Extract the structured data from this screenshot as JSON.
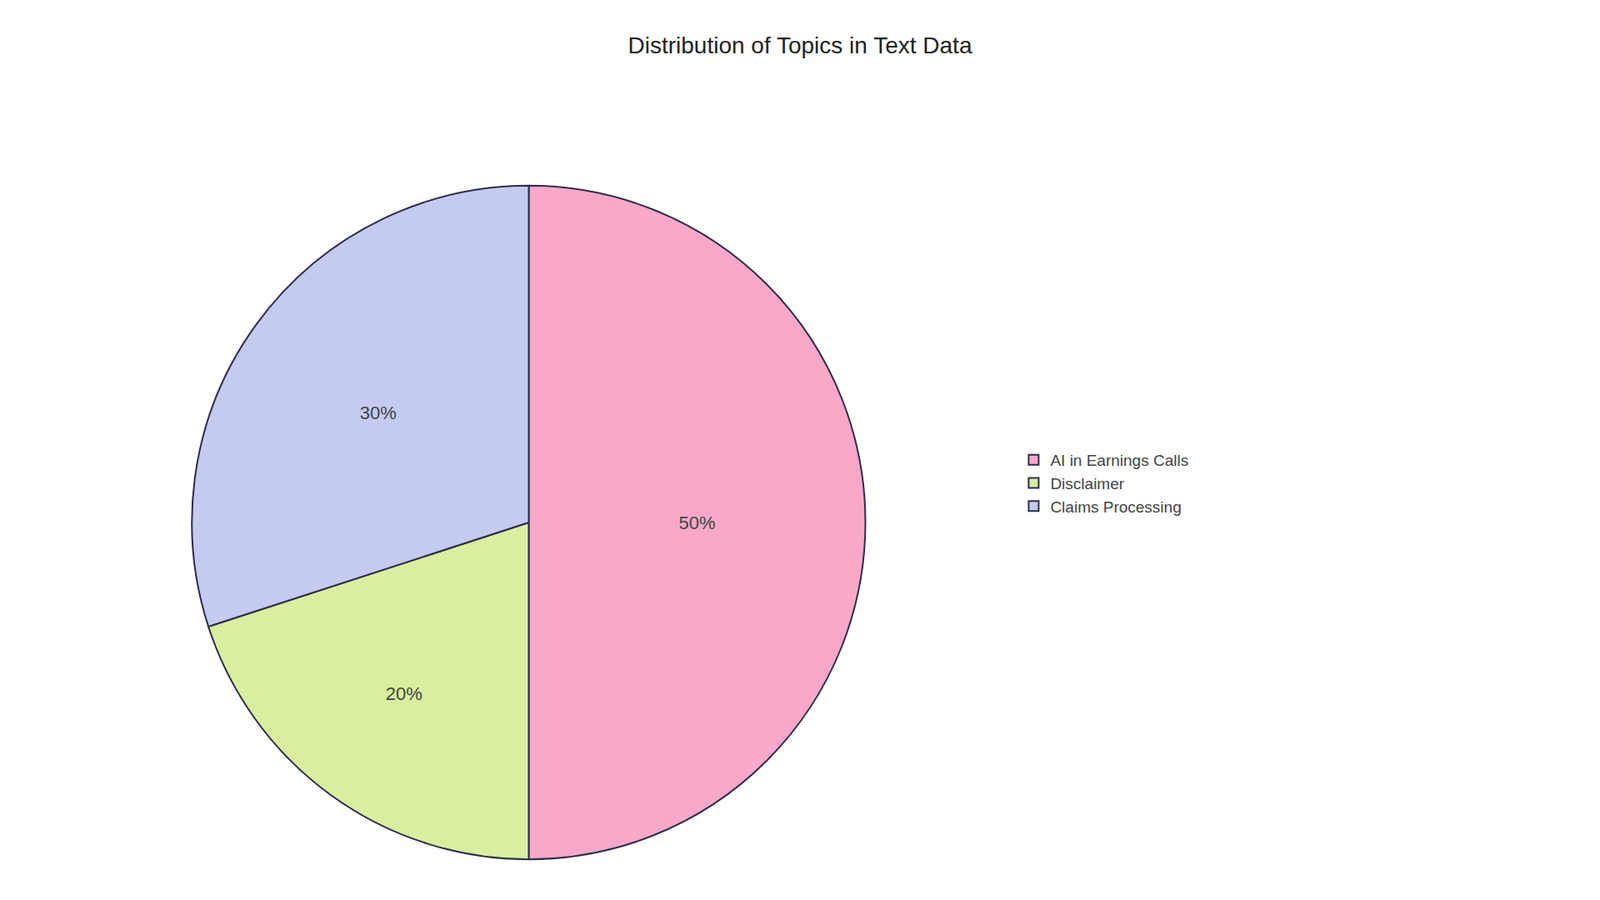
{
  "chart_data": {
    "type": "pie",
    "title": "Distribution of Topics in Text Data",
    "categories": [
      "AI in Earnings Calls",
      "Disclaimer",
      "Claims Processing"
    ],
    "values": [
      50,
      20,
      30
    ],
    "value_labels": [
      "50%",
      "20%",
      "30%"
    ],
    "colors": [
      "#F9A8C9",
      "#D8EFA0",
      "#C5CAF0"
    ],
    "data_labels": true,
    "legend": "right"
  }
}
